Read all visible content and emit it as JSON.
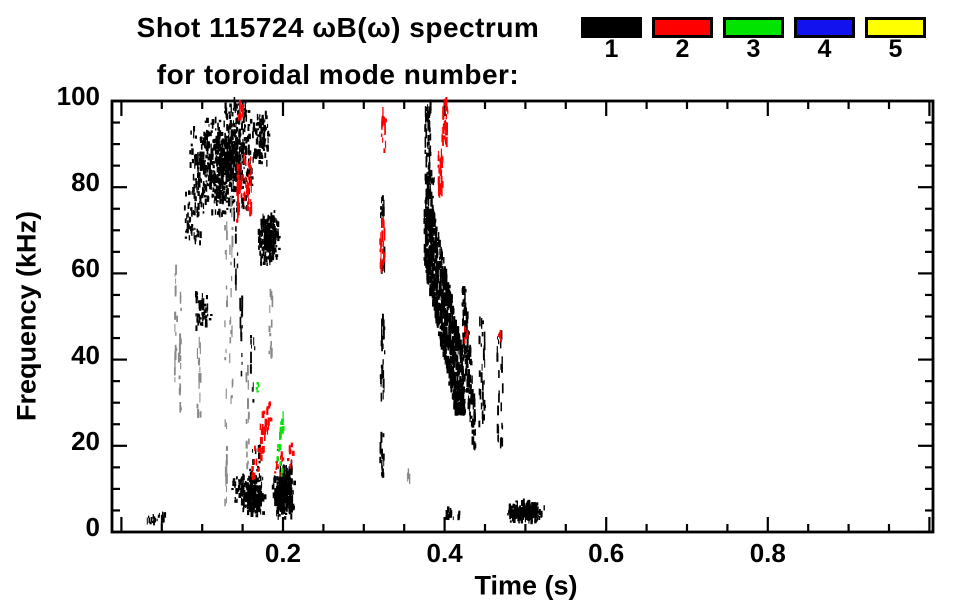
{
  "title": {
    "line1": "Shot 115724 ωB(ω) spectrum",
    "line2": "for toroidal mode number:"
  },
  "legend": {
    "items": [
      {
        "label": "1",
        "color": "#000000"
      },
      {
        "label": "2",
        "color": "#ff0000"
      },
      {
        "label": "3",
        "color": "#00e400"
      },
      {
        "label": "4",
        "color": "#1212ee"
      },
      {
        "label": "5",
        "color": "#ffff00"
      }
    ]
  },
  "chart_data": {
    "type": "scatter",
    "title": "Shot 115724 ωB(ω) spectrum for toroidal mode number:",
    "xlabel": "Time (s)",
    "ylabel": "Frequency (kHz)",
    "xlim": [
      0,
      1
    ],
    "ylim": [
      0,
      100
    ],
    "grid": false,
    "legend_position": "top-right",
    "x_ticks": {
      "values": [
        0.2,
        0.4,
        0.6,
        0.8
      ],
      "labels": [
        "0.2",
        "0.4",
        "0.6",
        "0.8"
      ]
    },
    "y_ticks": {
      "values": [
        0,
        20,
        40,
        60,
        80,
        100
      ],
      "labels": [
        "0",
        "20",
        "40",
        "60",
        "80",
        "100"
      ]
    },
    "x_minor_step": 0.05,
    "y_minor_step": 5,
    "cluster_format": [
      "t_start_s",
      "t_end_s",
      "f_min_kHz",
      "f_max_kHz",
      "n_points",
      "shape u=uniform b=blob s=vertical-streak d=descending D=ascending",
      "gray_flag"
    ],
    "series": [
      {
        "name": "1",
        "color": "#000000",
        "clusters": [
          [
            0.082,
            0.168,
            73,
            98,
            650,
            "b"
          ],
          [
            0.128,
            0.158,
            88,
            100,
            90,
            "u"
          ],
          [
            0.078,
            0.1,
            67,
            79,
            55,
            "u"
          ],
          [
            0.163,
            0.184,
            85,
            98,
            90,
            "b"
          ],
          [
            0.168,
            0.197,
            62,
            75,
            230,
            "b"
          ],
          [
            0.088,
            0.112,
            46,
            56,
            50,
            "b"
          ],
          [
            0.066,
            0.069,
            35,
            62,
            20,
            "s",
            1
          ],
          [
            0.071,
            0.074,
            28,
            55,
            16,
            "s",
            1
          ],
          [
            0.094,
            0.098,
            24,
            44,
            14,
            "s",
            1
          ],
          [
            0.128,
            0.131,
            5,
            74,
            26,
            "s",
            1
          ],
          [
            0.134,
            0.138,
            30,
            90,
            22,
            "s",
            1
          ],
          [
            0.154,
            0.158,
            8,
            38,
            16,
            "s",
            1
          ],
          [
            0.183,
            0.187,
            38,
            56,
            12,
            "s",
            1
          ],
          [
            0.352,
            0.357,
            11,
            14,
            4,
            "s",
            1
          ],
          [
            0.139,
            0.144,
            55,
            100,
            22,
            "s"
          ],
          [
            0.146,
            0.15,
            30,
            55,
            14,
            "s"
          ],
          [
            0.16,
            0.165,
            30,
            46,
            10,
            "s"
          ],
          [
            0.207,
            0.212,
            5,
            16,
            18,
            "s"
          ],
          [
            0.146,
            0.178,
            3,
            14,
            260,
            "b"
          ],
          [
            0.186,
            0.215,
            3,
            16,
            270,
            "b"
          ],
          [
            0.137,
            0.152,
            7,
            13,
            40,
            "u"
          ],
          [
            0.158,
            0.172,
            13,
            20,
            14,
            "u"
          ],
          [
            0.032,
            0.056,
            2,
            4.5,
            22,
            "u"
          ],
          [
            0.32,
            0.325,
            11,
            23,
            20,
            "s"
          ],
          [
            0.321,
            0.326,
            31,
            44,
            18,
            "s"
          ],
          [
            0.322,
            0.326,
            45,
            53,
            12,
            "s"
          ],
          [
            0.322,
            0.326,
            60,
            65,
            10,
            "s"
          ],
          [
            0.321,
            0.325,
            72,
            78,
            12,
            "s"
          ],
          [
            0.376,
            0.383,
            76,
            100,
            70,
            "s"
          ],
          [
            0.378,
            0.388,
            72,
            84,
            25,
            "u"
          ],
          [
            0.375,
            0.425,
            28,
            74,
            850,
            "d"
          ],
          [
            0.422,
            0.438,
            20,
            56,
            130,
            "d"
          ],
          [
            0.442,
            0.45,
            25,
            50,
            30,
            "s"
          ],
          [
            0.465,
            0.472,
            20,
            47,
            26,
            "s"
          ],
          [
            0.402,
            0.419,
            3,
            5.5,
            16,
            "u"
          ],
          [
            0.478,
            0.524,
            2,
            7.5,
            210,
            "b"
          ]
        ]
      },
      {
        "name": "2",
        "color": "#ff0000",
        "clusters": [
          [
            0.143,
            0.149,
            72,
            86,
            28,
            "s"
          ],
          [
            0.151,
            0.162,
            74,
            87,
            36,
            "s"
          ],
          [
            0.145,
            0.151,
            96,
            100,
            8,
            "s"
          ],
          [
            0.162,
            0.186,
            13,
            31,
            38,
            "D"
          ],
          [
            0.19,
            0.214,
            13,
            20,
            22,
            "u"
          ],
          [
            0.208,
            0.212,
            18,
            21,
            6,
            "u"
          ],
          [
            0.32,
            0.326,
            61,
            72,
            24,
            "s"
          ],
          [
            0.322,
            0.328,
            88,
            98,
            14,
            "s"
          ],
          [
            0.392,
            0.398,
            78,
            88,
            28,
            "s"
          ],
          [
            0.397,
            0.404,
            90,
            100,
            34,
            "s"
          ],
          [
            0.425,
            0.429,
            44,
            48,
            6,
            "u"
          ],
          [
            0.466,
            0.47,
            44,
            47,
            5,
            "u"
          ]
        ]
      },
      {
        "name": "3",
        "color": "#00e400",
        "clusters": [
          [
            0.167,
            0.171,
            32,
            35,
            5,
            "u"
          ],
          [
            0.193,
            0.201,
            17,
            27,
            16,
            "D"
          ],
          [
            0.195,
            0.2,
            13,
            16,
            4,
            "u"
          ]
        ]
      },
      {
        "name": "4",
        "color": "#1212ee",
        "clusters": []
      },
      {
        "name": "5",
        "color": "#ffff00",
        "clusters": []
      }
    ]
  }
}
